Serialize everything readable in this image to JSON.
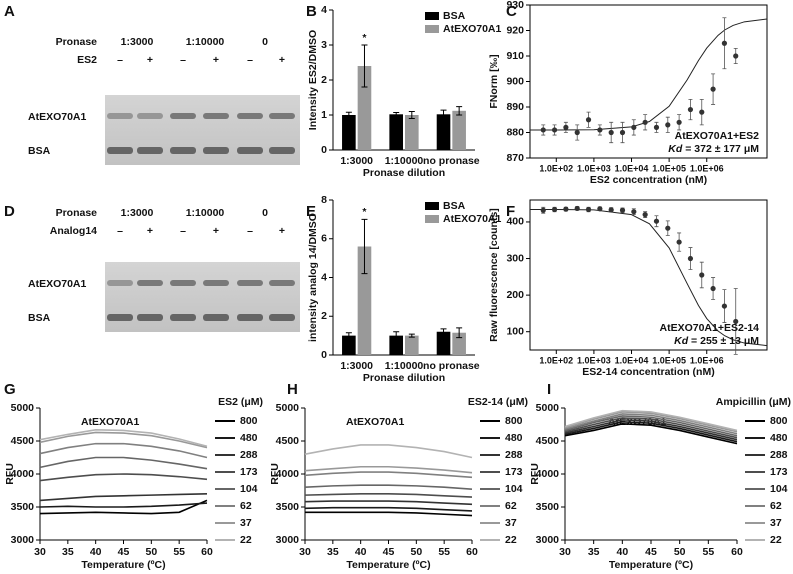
{
  "gels": [
    {
      "label": "A",
      "row_title": "Pronase",
      "groups": [
        "1:3000",
        "1:10000",
        "0"
      ],
      "treatment": "ES2",
      "marks": [
        "–",
        "+",
        "–",
        "+",
        "–",
        "+"
      ],
      "bands": [
        "AtEXO70A1",
        "BSA"
      ]
    },
    {
      "label": "D",
      "row_title": "Pronase",
      "groups": [
        "1:3000",
        "1:10000",
        "0"
      ],
      "treatment": "Analog14",
      "marks": [
        "–",
        "+",
        "–",
        "+",
        "–",
        "+"
      ],
      "bands": [
        "AtEXO70A1",
        "BSA"
      ]
    }
  ],
  "chart_data": [
    {
      "label": "B",
      "type": "bar",
      "ylabel": "Intensity ES2/DMSO",
      "xlabel": "Pronase dilution",
      "categories": [
        "1:3000",
        "1:10000",
        "no pronase"
      ],
      "series": [
        {
          "name": "BSA",
          "color": "#000000",
          "values": [
            1.0,
            1.02,
            1.02
          ],
          "errors": [
            0.08,
            0.05,
            0.12
          ]
        },
        {
          "name": "AtEXO70A1",
          "color": "#999999",
          "values": [
            2.4,
            1.0,
            1.12
          ],
          "errors": [
            0.6,
            0.1,
            0.12
          ]
        }
      ],
      "ylim": [
        0,
        4
      ],
      "yticks": [
        0,
        1,
        2,
        3,
        4
      ],
      "annotation": "*",
      "legend": "upper right"
    },
    {
      "label": "C",
      "type": "scatter",
      "x_scale": "log",
      "ylabel": "FNorm [‰]",
      "xlabel": "ES2 concentration (nM)",
      "x": [
        45,
        90,
        180,
        360,
        720,
        1440,
        2880,
        5760,
        11520,
        23040,
        46080,
        92160,
        184320,
        368640,
        737280,
        1474560,
        2949120,
        5898240
      ],
      "values": [
        881,
        881,
        882,
        880,
        885,
        881,
        880,
        880,
        882,
        884,
        882,
        883,
        884,
        889,
        888,
        897,
        915,
        910
      ],
      "errors": [
        2,
        2,
        2,
        3,
        3,
        2,
        4,
        4,
        3,
        3,
        2,
        3,
        3,
        4,
        5,
        6,
        10,
        3
      ],
      "color": "#333333",
      "fit": {
        "x": [
          20,
          100,
          1000,
          10000,
          30000,
          100000,
          300000,
          600000,
          1000000,
          2000000,
          3000000,
          5000000,
          10000000,
          40000000
        ],
        "values": [
          881,
          881,
          881.1,
          882.2,
          884.3,
          890.3,
          900.6,
          908.2,
          913.1,
          918.1,
          920.2,
          922,
          923.4,
          924.5
        ]
      },
      "xlim": [
        20,
        40000000
      ],
      "xticks": [
        {
          "value": 100,
          "label": "1.0E+02"
        },
        {
          "value": 1000,
          "label": "1.0E+03"
        },
        {
          "value": 10000,
          "label": "1.0E+04"
        },
        {
          "value": 100000,
          "label": "1.0E+05"
        },
        {
          "value": 1000000,
          "label": "1.0E+06"
        }
      ],
      "ylim": [
        870,
        930
      ],
      "yticks": [
        870,
        880,
        890,
        900,
        910,
        920,
        930
      ],
      "annotation": "AtEXO70A1+ES2",
      "kd_symbol": "Kd",
      "kd_text": " = 372 ± 177 μM"
    },
    {
      "label": "E",
      "type": "bar",
      "ylabel": "intensity analog 14/DMSO",
      "xlabel": "Pronase dilution",
      "categories": [
        "1:3000",
        "1:10000",
        "no pronase"
      ],
      "series": [
        {
          "name": "BSA",
          "color": "#000000",
          "values": [
            1.0,
            1.0,
            1.2
          ],
          "errors": [
            0.15,
            0.2,
            0.15
          ]
        },
        {
          "name": "AtEXO70A1",
          "color": "#999999",
          "values": [
            5.6,
            1.0,
            1.15
          ],
          "errors": [
            1.4,
            0.08,
            0.25
          ]
        }
      ],
      "ylim": [
        0,
        8
      ],
      "yticks": [
        0,
        2,
        4,
        6,
        8
      ],
      "annotation": "*",
      "legend": "upper right"
    },
    {
      "label": "F",
      "type": "scatter",
      "x_scale": "log",
      "ylabel": "Raw fluorescence [counts]",
      "xlabel": "ES2-14 concentration (nM)",
      "x": [
        45,
        90,
        180,
        360,
        720,
        1440,
        2880,
        5760,
        11520,
        23040,
        46080,
        92160,
        184320,
        368640,
        737280,
        1474560,
        2949120,
        5898240
      ],
      "values": [
        432,
        434,
        435,
        437,
        434,
        436,
        433,
        432,
        428,
        420,
        402,
        383,
        345,
        300,
        255,
        218,
        170,
        128
      ],
      "errors": [
        8,
        6,
        5,
        5,
        6,
        5,
        6,
        6,
        8,
        8,
        15,
        20,
        25,
        30,
        35,
        30,
        45,
        90
      ],
      "color": "#333333",
      "fit": {
        "x": [
          20,
          100,
          1000,
          10000,
          30000,
          100000,
          300000,
          600000,
          1000000,
          2000000,
          3000000,
          5000000,
          10000000,
          40000000
        ],
        "values": [
          434,
          434,
          433,
          420,
          395,
          329,
          232,
          172,
          136,
          102,
          89,
          78,
          69,
          62
        ]
      },
      "xlim": [
        20,
        40000000
      ],
      "xticks": [
        {
          "value": 100,
          "label": "1.0E+02"
        },
        {
          "value": 1000,
          "label": "1.0E+03"
        },
        {
          "value": 10000,
          "label": "1.0E+04"
        },
        {
          "value": 100000,
          "label": "1.0E+05"
        },
        {
          "value": 1000000,
          "label": "1.0E+06"
        }
      ],
      "ylim": [
        50,
        460
      ],
      "yticks": [
        100,
        200,
        300,
        400
      ],
      "annotation": "AtEXO70A1+ES2-14",
      "kd_symbol": "Kd",
      "kd_text": " = 255 ± 13 μM"
    },
    {
      "label": "G",
      "type": "line",
      "title": "AtEXO70A1",
      "legend_title": "ES2 (μM)",
      "ylabel": "RFU",
      "xlabel": "Temperature (ºC)",
      "x": [
        30,
        35,
        40,
        45,
        50,
        55,
        60
      ],
      "xlim": [
        30,
        60
      ],
      "xticks": [
        30,
        35,
        40,
        45,
        50,
        55,
        60
      ],
      "ylim": [
        3000,
        5000
      ],
      "yticks": [
        3000,
        3500,
        4000,
        4500,
        5000
      ],
      "series": [
        {
          "name": "800",
          "color": "#000000",
          "values": [
            3400,
            3410,
            3420,
            3410,
            3400,
            3420,
            3600
          ]
        },
        {
          "name": "480",
          "color": "#1a1a1a",
          "values": [
            3500,
            3510,
            3500,
            3500,
            3510,
            3530,
            3560
          ]
        },
        {
          "name": "288",
          "color": "#333333",
          "values": [
            3600,
            3630,
            3660,
            3670,
            3680,
            3690,
            3700
          ]
        },
        {
          "name": "173",
          "color": "#4d4d4d",
          "values": [
            3900,
            3950,
            3990,
            4000,
            3990,
            3960,
            3920
          ]
        },
        {
          "name": "104",
          "color": "#666666",
          "values": [
            4100,
            4190,
            4250,
            4250,
            4210,
            4150,
            4080
          ]
        },
        {
          "name": "62",
          "color": "#808080",
          "values": [
            4310,
            4400,
            4460,
            4460,
            4420,
            4350,
            4250
          ]
        },
        {
          "name": "37",
          "color": "#999999",
          "values": [
            4480,
            4570,
            4630,
            4620,
            4580,
            4500,
            4400
          ]
        },
        {
          "name": "22",
          "color": "#b3b3b3",
          "values": [
            4520,
            4600,
            4670,
            4660,
            4620,
            4530,
            4420
          ]
        }
      ]
    },
    {
      "label": "H",
      "type": "line",
      "title": "AtEXO70A1",
      "legend_title": "ES2-14 (μM)",
      "ylabel": "RFU",
      "xlabel": "Temperature (ºC)",
      "x": [
        30,
        35,
        40,
        45,
        50,
        55,
        60
      ],
      "xlim": [
        30,
        60
      ],
      "xticks": [
        30,
        35,
        40,
        45,
        50,
        55,
        60
      ],
      "ylim": [
        3000,
        5000
      ],
      "yticks": [
        3000,
        3500,
        4000,
        4500,
        5000
      ],
      "series": [
        {
          "name": "800",
          "color": "#000000",
          "values": [
            3420,
            3420,
            3420,
            3420,
            3410,
            3390,
            3370
          ]
        },
        {
          "name": "480",
          "color": "#1a1a1a",
          "values": [
            3480,
            3490,
            3490,
            3490,
            3480,
            3460,
            3440
          ]
        },
        {
          "name": "288",
          "color": "#333333",
          "values": [
            3580,
            3590,
            3590,
            3590,
            3580,
            3560,
            3540
          ]
        },
        {
          "name": "173",
          "color": "#4d4d4d",
          "values": [
            3680,
            3690,
            3700,
            3700,
            3690,
            3670,
            3650
          ]
        },
        {
          "name": "104",
          "color": "#666666",
          "values": [
            3800,
            3820,
            3830,
            3830,
            3820,
            3800,
            3770
          ]
        },
        {
          "name": "62",
          "color": "#808080",
          "values": [
            3980,
            4010,
            4030,
            4030,
            4010,
            3980,
            3950
          ]
        },
        {
          "name": "37",
          "color": "#999999",
          "values": [
            4050,
            4080,
            4110,
            4110,
            4090,
            4060,
            4020
          ]
        },
        {
          "name": "22",
          "color": "#b3b3b3",
          "values": [
            4300,
            4380,
            4440,
            4440,
            4400,
            4340,
            4250
          ]
        }
      ]
    },
    {
      "label": "I",
      "type": "line",
      "title": "AtEXO70A1",
      "legend_title": "Ampicillin (μM)",
      "ylabel": "RFU",
      "xlabel": "Temperature (ºC)",
      "x": [
        30,
        35,
        40,
        45,
        50,
        55,
        60
      ],
      "xlim": [
        30,
        60
      ],
      "xticks": [
        30,
        35,
        40,
        45,
        50,
        55,
        60
      ],
      "ylim": [
        3000,
        5000
      ],
      "yticks": [
        3000,
        3500,
        4000,
        4500,
        5000
      ],
      "series": [
        {
          "name": "800",
          "color": "#000000",
          "values": [
            4580,
            4660,
            4760,
            4740,
            4660,
            4560,
            4460
          ]
        },
        {
          "name": "480",
          "color": "#1a1a1a",
          "values": [
            4600,
            4690,
            4790,
            4770,
            4690,
            4590,
            4490
          ]
        },
        {
          "name": "288",
          "color": "#333333",
          "values": [
            4620,
            4720,
            4820,
            4800,
            4720,
            4620,
            4520
          ]
        },
        {
          "name": "173",
          "color": "#4d4d4d",
          "values": [
            4640,
            4750,
            4850,
            4830,
            4750,
            4650,
            4550
          ]
        },
        {
          "name": "104",
          "color": "#666666",
          "values": [
            4660,
            4780,
            4880,
            4860,
            4780,
            4680,
            4580
          ]
        },
        {
          "name": "62",
          "color": "#808080",
          "values": [
            4680,
            4800,
            4910,
            4890,
            4810,
            4710,
            4610
          ]
        },
        {
          "name": "37",
          "color": "#999999",
          "values": [
            4700,
            4830,
            4940,
            4920,
            4840,
            4740,
            4640
          ]
        },
        {
          "name": "22",
          "color": "#b3b3b3",
          "values": [
            4720,
            4850,
            4960,
            4940,
            4860,
            4760,
            4660
          ]
        }
      ]
    }
  ]
}
